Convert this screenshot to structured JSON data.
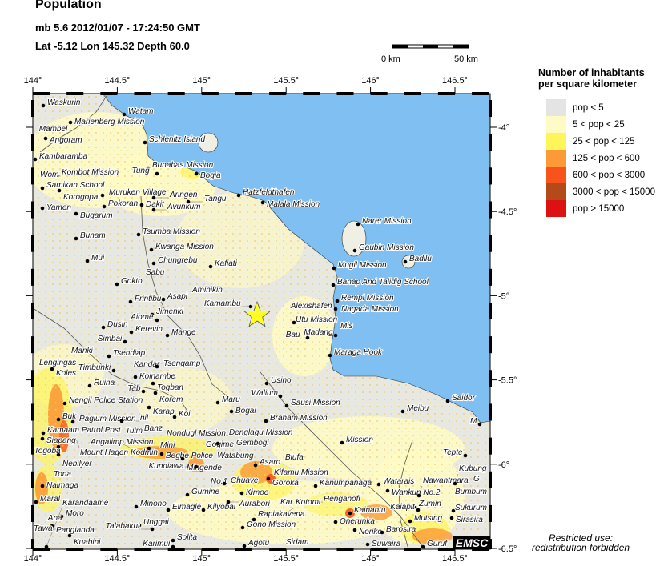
{
  "header": {
    "title": "Population",
    "event_line": "mb 5.6  2012/01/07 - 17:24:50 GMT",
    "location_line": "Lat -5.12    Lon 145.32     Depth  60.0"
  },
  "scale_bar": {
    "start_label": "0 km",
    "end_label": "50 km"
  },
  "axes": {
    "lon_ticks": [
      "144°",
      "144.5°",
      "145°",
      "145.5°",
      "146°",
      "146.5°"
    ],
    "lat_ticks": [
      "-4°",
      "-4.5°",
      "-5°",
      "-5.5°",
      "-6°",
      "-6.5°"
    ]
  },
  "epicenter": {
    "icon": "star-icon",
    "color": "#ffff22"
  },
  "colors": {
    "sea": "#7fbff2",
    "land": "#e8e8e2"
  },
  "legend": {
    "title_line1": "Number of inhabitants",
    "title_line2": "per square kilometer",
    "items": [
      {
        "label": "pop < 5",
        "color": "#e4e4e4"
      },
      {
        "label": "5 < pop < 25",
        "color": "#fffbc4"
      },
      {
        "label": "25 < pop < 125",
        "color": "#fdf55a"
      },
      {
        "label": "125 < pop < 600",
        "color": "#fb9a36"
      },
      {
        "label": "600 < pop < 3000",
        "color": "#f9531c"
      },
      {
        "label": "3000 < pop < 15000",
        "color": "#b24a1a"
      },
      {
        "label": "pop > 15000",
        "color": "#dd1111"
      }
    ]
  },
  "logo": "EMSC",
  "notice": {
    "line1": "Restricted use:",
    "line2": "redistribution forbidden"
  },
  "places": [
    "Waskurin",
    "Watam",
    "Marienberg Mission",
    "Mambel",
    "Angoram",
    "Kambaramba",
    "Kombot Mission",
    "Wom",
    "Samikan School",
    "Korogopa",
    "Muruken Village",
    "Yamen",
    "Pokoran",
    "Bugarum",
    "Dakit",
    "Aringen",
    "Avunkum",
    "Tangu",
    "Schlenitz Island",
    "Bunabas Mission",
    "Tung",
    "Bogia",
    "Hatzfeldthafen",
    "Malala Mission",
    "Tsumba Mission",
    "Bunam",
    "Kwanga Mission",
    "Mui",
    "Chungrebu",
    "Kafiati",
    "Sabu",
    "Gokto",
    "Frintibu",
    "Asapi",
    "Aminikin",
    "Jimenki",
    "Aiome",
    "Dusin",
    "Kerevin",
    "Simbai",
    "Mange",
    "Tsendiap",
    "Manki",
    "Lengingas",
    "Koles",
    "Kandar",
    "Tsengamp",
    "Timbunki",
    "Koinambe",
    "Ruina",
    "Togban",
    "Tab",
    "Korem",
    "Nengil Police Station",
    "Karap",
    "Maru",
    "Bogai",
    "Koi",
    "Buk",
    "Pagium Mission",
    "nil",
    "Kamaam Patrol Post",
    "Siapang",
    "Banz",
    "Angalimp Mission",
    "Mount Hagen",
    "Kodmin",
    "Tulm",
    "Togoba",
    "Nebilyer",
    "Mini",
    "Nondugl Mission",
    "Begbe Police",
    "Gogime",
    "Mingende",
    "Kundiawa",
    "Denglagu Mission",
    "Gembogi",
    "Tona",
    "Nalmaga",
    "Maral",
    "Minono",
    "Elmagle",
    "Kilyobai",
    "Gumine",
    "No.1",
    "Chuave",
    "Kimoe",
    "Aurabori",
    "Moro",
    "Ana",
    "Pangianda",
    "Tawa",
    "Kuabini",
    "Unggai",
    "Talabakul",
    "Solita",
    "Karimui",
    "Karandaame",
    "Agotu",
    "Sidam",
    "Gono Mission",
    "Rapiakavena",
    "Kar",
    "Kotomi",
    "Henganofi",
    "Kainantu",
    "Onerunka",
    "Noriko",
    "Barosira",
    "Suwaira",
    "Guruf",
    "Kanumpanaga",
    "Watarais",
    "Wankun No.2",
    "Nawantmara",
    "Zumin",
    "Kaiapit",
    "Mutsing",
    "Kubung",
    "Bumbum",
    "G",
    "Sukurum",
    "Sirasira",
    "Tepte",
    "M",
    "Mission",
    "Braham Mission",
    "Sausi Mission",
    "Meibu",
    "Asaro",
    "Biufa",
    "Kifamu Mission",
    "Watabung",
    "Goroka",
    "Narer Mission",
    "Gaubin Mission",
    "Badilu",
    "Mugil Mission",
    "Banap And Talidig School",
    "Rempi Mission",
    "Alexishafen",
    "Nagada Mission",
    "Mis",
    "Madang",
    "Utu Mission",
    "Bau",
    "Maraga Hook",
    "Kamambu",
    "Usino",
    "Walium",
    "Saidor"
  ]
}
